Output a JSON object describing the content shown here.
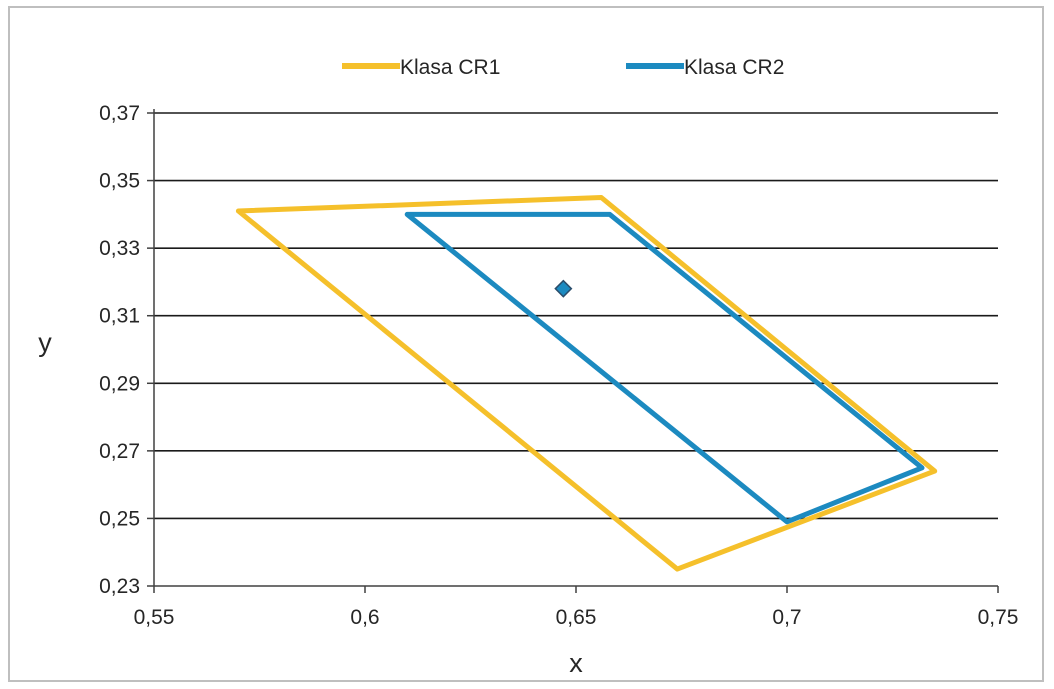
{
  "chart_data": {
    "type": "line",
    "title": "",
    "xlabel": "x",
    "ylabel": "y",
    "xlim": [
      0.55,
      0.75
    ],
    "ylim": [
      0.23,
      0.37
    ],
    "x_ticks": [
      "0,55",
      "0,6",
      "0,65",
      "0,7",
      "0,75"
    ],
    "x_tick_values": [
      0.55,
      0.6,
      0.65,
      0.7,
      0.75
    ],
    "y_ticks": [
      "0,23",
      "0,25",
      "0,27",
      "0,29",
      "0,31",
      "0,33",
      "0,35",
      "0,37"
    ],
    "y_tick_values": [
      0.23,
      0.25,
      0.27,
      0.29,
      0.31,
      0.33,
      0.35,
      0.37
    ],
    "grid": "horizontal",
    "legend_position": "top",
    "series": [
      {
        "name": "Klasa CR1",
        "color": "#f5c02b",
        "x": [
          0.57,
          0.656,
          0.735,
          0.674,
          0.57
        ],
        "y": [
          0.341,
          0.345,
          0.264,
          0.235,
          0.341
        ]
      },
      {
        "name": "Klasa CR2",
        "color": "#1c8ac0",
        "x": [
          0.61,
          0.658,
          0.732,
          0.7,
          0.61
        ],
        "y": [
          0.34,
          0.34,
          0.265,
          0.249,
          0.34
        ]
      }
    ],
    "points": [
      {
        "x": 0.647,
        "y": 0.318,
        "color": "#1c8ac0"
      }
    ]
  }
}
